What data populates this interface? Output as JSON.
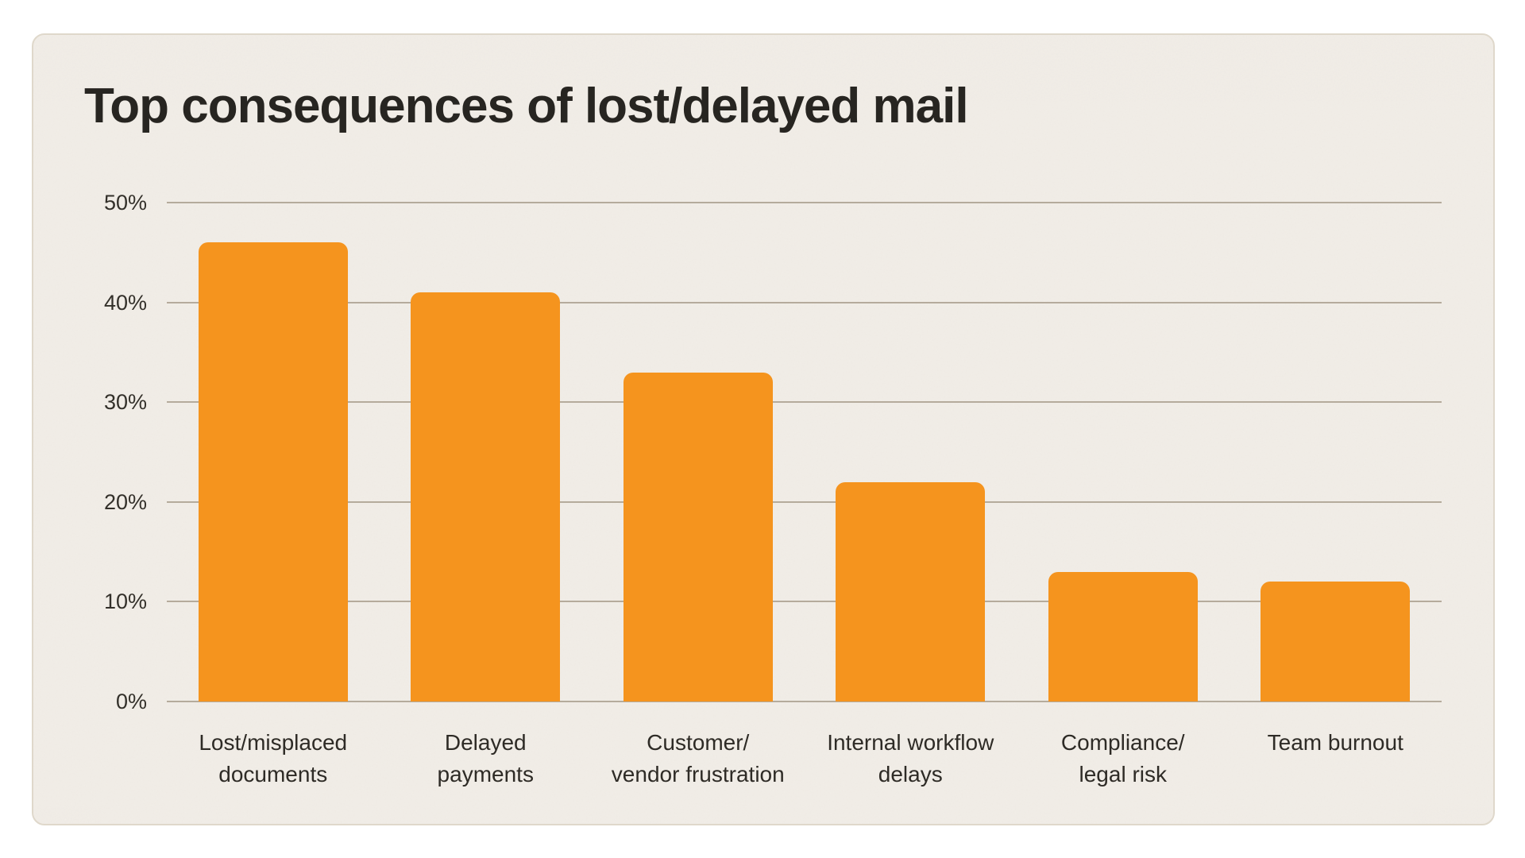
{
  "chart_data": {
    "type": "bar",
    "title": "Top consequences of lost/delayed mail",
    "categories": [
      [
        "Lost/misplaced",
        "documents"
      ],
      [
        "Delayed",
        "payments"
      ],
      [
        "Customer/",
        "vendor frustration"
      ],
      [
        "Internal workflow",
        "delays"
      ],
      [
        "Compliance/",
        "legal risk"
      ],
      [
        "Team burnout"
      ]
    ],
    "values": [
      46,
      41,
      33,
      22,
      13,
      12
    ],
    "unit": "%",
    "xlabel": "",
    "ylabel": "",
    "ylim": [
      0,
      50
    ],
    "yticks": [
      0,
      10,
      20,
      30,
      40,
      50
    ],
    "ytick_labels": [
      "0%",
      "10%",
      "20%",
      "30%",
      "40%",
      "50%"
    ],
    "grid": true,
    "legend": "none",
    "bar_color": "#F5941E",
    "grid_color": "#B5AB9C",
    "title_color": "#272521",
    "label_color": "#2E2B26",
    "card_background": "#F2EEE8",
    "card_border": "#DFD8CB",
    "page_background": "#FFFFFF"
  }
}
